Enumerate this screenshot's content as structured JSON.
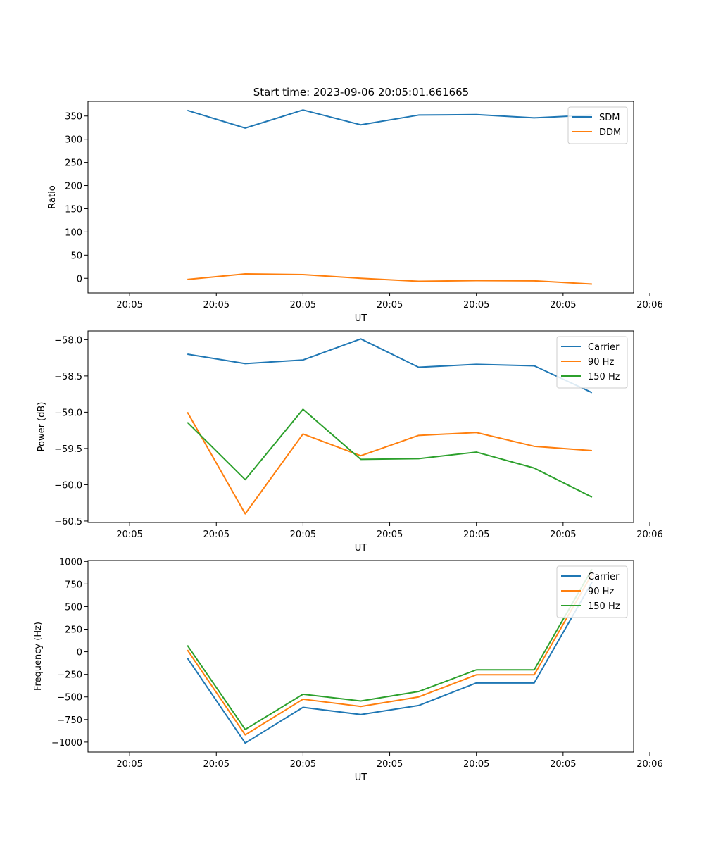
{
  "figure_title": "Start time: 2023-09-06 20:05:01.661665",
  "colors": {
    "c0": "#1f77b4",
    "c1": "#ff7f0e",
    "c2": "#2ca02c"
  },
  "chart_data": [
    {
      "type": "line",
      "title": "Start time: 2023-09-06 20:05:01.661665",
      "xlabel": "UT",
      "ylabel": "Ratio",
      "x": [
        1,
        2,
        3,
        4,
        5,
        6,
        7,
        8
      ],
      "xlim": [
        -0.72,
        8.72
      ],
      "ylim": [
        -31.5,
        381.5
      ],
      "xticks": [
        {
          "v": 0,
          "label": "20:05"
        },
        {
          "v": 1.5,
          "label": "20:05"
        },
        {
          "v": 3,
          "label": "20:05"
        },
        {
          "v": 4.5,
          "label": "20:05"
        },
        {
          "v": 6,
          "label": "20:05"
        },
        {
          "v": 7.5,
          "label": "20:05"
        },
        {
          "v": 9,
          "label": "20:06"
        }
      ],
      "yticks": [
        {
          "v": 0,
          "label": "0"
        },
        {
          "v": 50,
          "label": "50"
        },
        {
          "v": 100,
          "label": "100"
        },
        {
          "v": 150,
          "label": "150"
        },
        {
          "v": 200,
          "label": "200"
        },
        {
          "v": 250,
          "label": "250"
        },
        {
          "v": 300,
          "label": "300"
        },
        {
          "v": 350,
          "label": "350"
        }
      ],
      "legend_position": "top-right",
      "series": [
        {
          "name": "SDM",
          "color": "#1f77b4",
          "values": [
            362,
            324,
            363,
            331,
            352,
            353,
            346,
            352
          ]
        },
        {
          "name": "DDM",
          "color": "#ff7f0e",
          "values": [
            -2.5,
            9.5,
            8,
            0,
            -6.5,
            -5,
            -5.5,
            -12.5
          ]
        }
      ]
    },
    {
      "type": "line",
      "title": "",
      "xlabel": "UT",
      "ylabel": "Power (dB)",
      "x": [
        1,
        2,
        3,
        4,
        5,
        6,
        7,
        8
      ],
      "xlim": [
        -0.72,
        8.72
      ],
      "ylim": [
        -60.52,
        -57.88
      ],
      "xticks": [
        {
          "v": 0,
          "label": "20:05"
        },
        {
          "v": 1.5,
          "label": "20:05"
        },
        {
          "v": 3,
          "label": "20:05"
        },
        {
          "v": 4.5,
          "label": "20:05"
        },
        {
          "v": 6,
          "label": "20:05"
        },
        {
          "v": 7.5,
          "label": "20:05"
        },
        {
          "v": 9,
          "label": "20:06"
        }
      ],
      "yticks": [
        {
          "v": -60.5,
          "label": "−60.5"
        },
        {
          "v": -60.0,
          "label": "−60.0"
        },
        {
          "v": -59.5,
          "label": "−59.5"
        },
        {
          "v": -59.0,
          "label": "−59.0"
        },
        {
          "v": -58.5,
          "label": "−58.5"
        },
        {
          "v": -58.0,
          "label": "−58.0"
        }
      ],
      "legend_position": "top-right",
      "series": [
        {
          "name": "Carrier",
          "color": "#1f77b4",
          "values": [
            -58.2,
            -58.33,
            -58.28,
            -57.99,
            -58.38,
            -58.34,
            -58.36,
            -58.73
          ]
        },
        {
          "name": "90 Hz",
          "color": "#ff7f0e",
          "values": [
            -59.0,
            -60.4,
            -59.3,
            -59.6,
            -59.32,
            -59.28,
            -59.47,
            -59.53
          ]
        },
        {
          "name": "150 Hz",
          "color": "#2ca02c",
          "values": [
            -59.14,
            -59.93,
            -58.96,
            -59.65,
            -59.64,
            -59.55,
            -59.77,
            -60.17
          ]
        }
      ]
    },
    {
      "type": "line",
      "title": "",
      "xlabel": "UT",
      "ylabel": "Frequency (Hz)",
      "x": [
        1,
        2,
        3,
        4,
        5,
        6,
        7,
        8
      ],
      "xlim": [
        -0.72,
        8.72
      ],
      "ylim": [
        -1110,
        1010
      ],
      "xticks": [
        {
          "v": 0,
          "label": "20:05"
        },
        {
          "v": 1.5,
          "label": "20:05"
        },
        {
          "v": 3,
          "label": "20:05"
        },
        {
          "v": 4.5,
          "label": "20:05"
        },
        {
          "v": 6,
          "label": "20:05"
        },
        {
          "v": 7.5,
          "label": "20:05"
        },
        {
          "v": 9,
          "label": "20:06"
        }
      ],
      "yticks": [
        {
          "v": -1000,
          "label": "−1000"
        },
        {
          "v": -750,
          "label": "−750"
        },
        {
          "v": -500,
          "label": "−500"
        },
        {
          "v": -250,
          "label": "−250"
        },
        {
          "v": 0,
          "label": "0"
        },
        {
          "v": 250,
          "label": "250"
        },
        {
          "v": 500,
          "label": "500"
        },
        {
          "v": 750,
          "label": "750"
        },
        {
          "v": 1000,
          "label": "1000"
        }
      ],
      "legend_position": "top-right",
      "series": [
        {
          "name": "Carrier",
          "color": "#1f77b4",
          "values": [
            -70,
            -1010,
            -615,
            -695,
            -595,
            -345,
            -345,
            770
          ]
        },
        {
          "name": "90 Hz",
          "color": "#ff7f0e",
          "values": [
            20,
            -920,
            -525,
            -605,
            -500,
            -255,
            -255,
            860
          ]
        },
        {
          "name": "150 Hz",
          "color": "#2ca02c",
          "values": [
            70,
            -860,
            -470,
            -545,
            -440,
            -200,
            -200,
            915
          ]
        }
      ]
    }
  ]
}
